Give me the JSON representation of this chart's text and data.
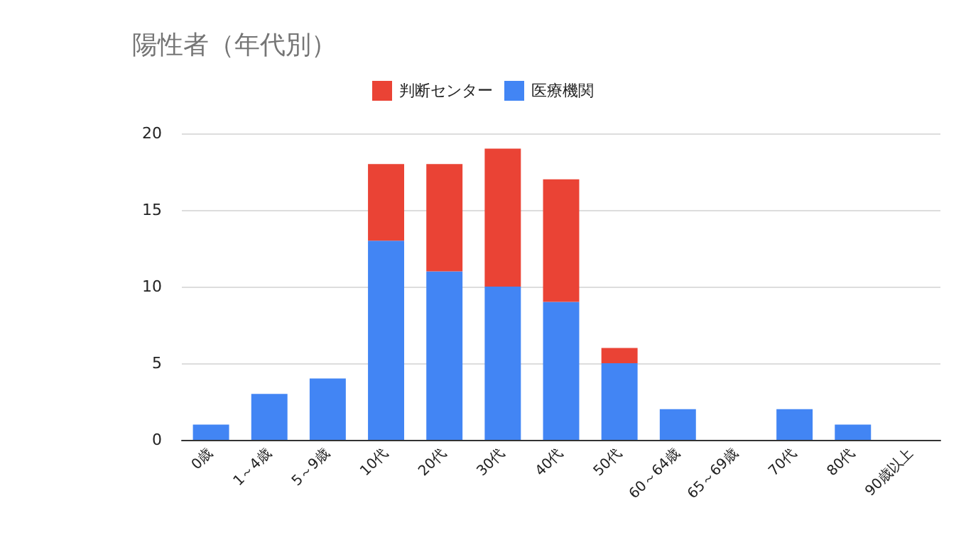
{
  "chart_data": {
    "type": "bar",
    "title": "陽性者（年代別）",
    "categories": [
      "0歳",
      "1～4歳",
      "5～9歳",
      "10代",
      "20代",
      "30代",
      "40代",
      "50代",
      "60～64歳",
      "65～69歳",
      "70代",
      "80代",
      "90歳以上"
    ],
    "series": [
      {
        "name": "医療機関",
        "color": "#4285f4",
        "values": [
          1,
          3,
          4,
          13,
          11,
          10,
          9,
          5,
          2,
          0,
          2,
          1,
          0
        ]
      },
      {
        "name": "判断センター",
        "color": "#ea4335",
        "values": [
          null,
          null,
          null,
          5,
          7,
          9,
          8,
          1,
          null,
          null,
          null,
          null,
          null
        ]
      }
    ],
    "stacked": true,
    "ylim": [
      0,
      20
    ],
    "yticks": [
      0,
      5,
      10,
      15,
      20
    ],
    "grid": "y",
    "legend": "top"
  }
}
